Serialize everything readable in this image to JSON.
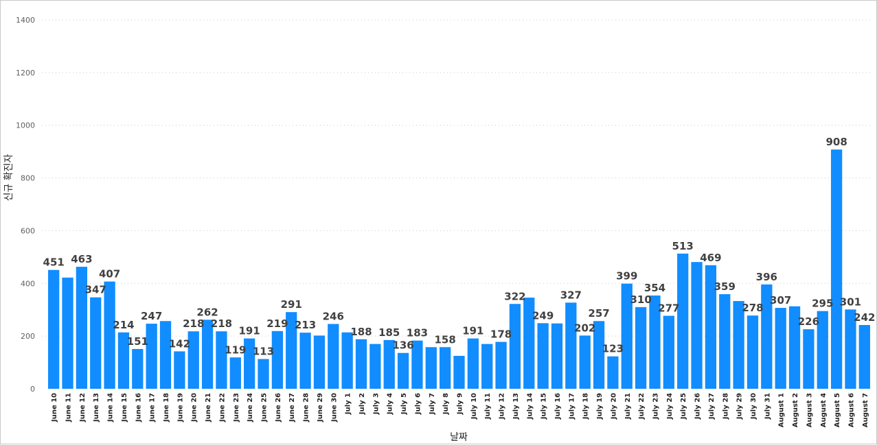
{
  "chart_data": {
    "type": "bar",
    "xlabel": "날짜",
    "ylabel": "신규 확진자",
    "ylim": [
      0,
      1400
    ],
    "yticks": [
      0,
      200,
      400,
      600,
      800,
      1000,
      1200,
      1400
    ],
    "grid": true,
    "bar_color": "#118DFF",
    "categories": [
      "June 10",
      "June 11",
      "June 12",
      "June 13",
      "June 14",
      "June 15",
      "June 16",
      "June 17",
      "June 18",
      "June 19",
      "June 20",
      "June 21",
      "June 22",
      "June 23",
      "June 24",
      "June 25",
      "June 26",
      "June 27",
      "June 28",
      "June 29",
      "June 30",
      "July 1",
      "July 2",
      "July 3",
      "July 4",
      "July 5",
      "July 6",
      "July 7",
      "July 8",
      "July 9",
      "July 10",
      "July 11",
      "July 12",
      "July 13",
      "July 14",
      "July 15",
      "July 16",
      "July 17",
      "July 18",
      "July 19",
      "July 20",
      "July 21",
      "July 22",
      "July 23",
      "July 24",
      "July 25",
      "July 26",
      "July 27",
      "July 28",
      "July 29",
      "July 30",
      "July 31",
      "August 1",
      "August 2",
      "August 3",
      "August 4",
      "August 5",
      "August 6",
      "August 7"
    ],
    "values": [
      451,
      422,
      463,
      347,
      407,
      214,
      151,
      247,
      257,
      142,
      218,
      262,
      218,
      119,
      191,
      113,
      219,
      291,
      213,
      202,
      246,
      214,
      188,
      170,
      185,
      136,
      183,
      158,
      158,
      125,
      191,
      170,
      178,
      322,
      346,
      249,
      248,
      327,
      202,
      257,
      123,
      399,
      310,
      354,
      277,
      513,
      481,
      469,
      359,
      333,
      278,
      396,
      307,
      313,
      226,
      295,
      908,
      301,
      242
    ],
    "data_labels": [
      451,
      null,
      463,
      347,
      407,
      214,
      151,
      247,
      null,
      142,
      218,
      262,
      218,
      119,
      191,
      113,
      219,
      291,
      213,
      null,
      246,
      null,
      188,
      null,
      185,
      136,
      183,
      null,
      158,
      null,
      191,
      null,
      178,
      322,
      null,
      249,
      null,
      327,
      202,
      257,
      123,
      399,
      310,
      354,
      277,
      513,
      null,
      469,
      359,
      null,
      278,
      396,
      307,
      null,
      226,
      295,
      908,
      301,
      242
    ]
  }
}
